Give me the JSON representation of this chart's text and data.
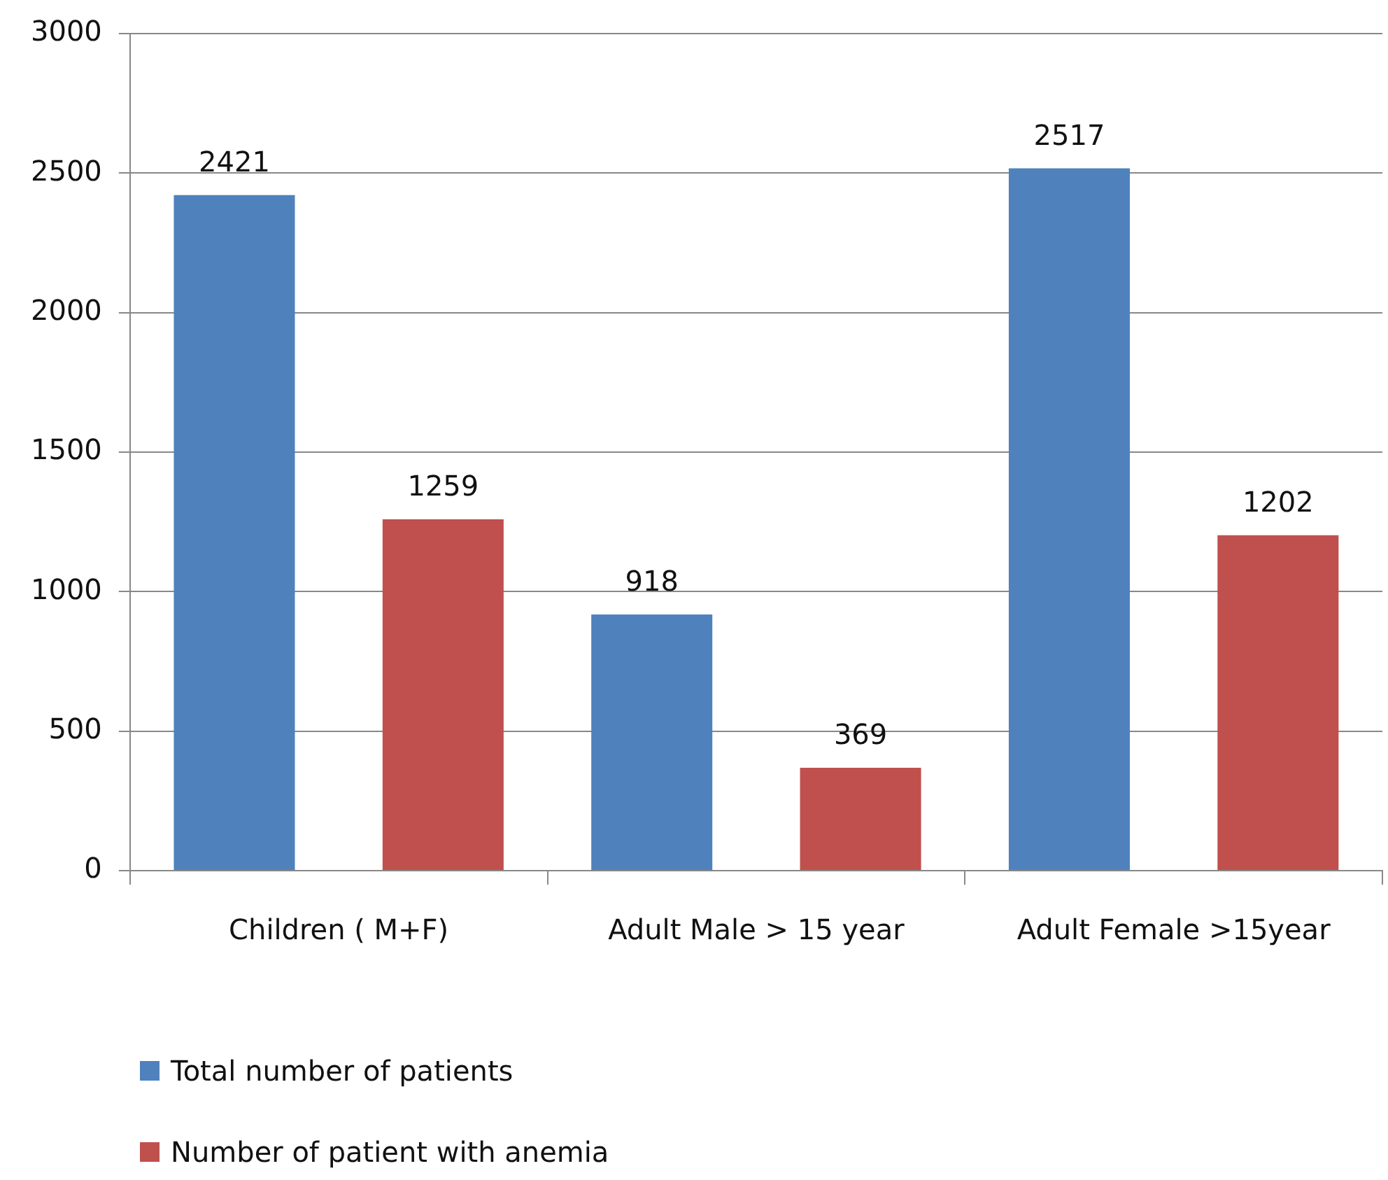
{
  "chart_data": {
    "type": "bar",
    "categories": [
      "Children ( M+F)",
      "Adult Male > 15 year",
      "Adult Female >15year"
    ],
    "series": [
      {
        "name": "Total number of patients",
        "color": "#4f81bd",
        "values": [
          2421,
          918,
          2517
        ]
      },
      {
        "name": "Number of patient with anemia",
        "color": "#c0504d",
        "values": [
          1259,
          369,
          1202
        ]
      }
    ],
    "ylim": [
      0,
      3000
    ],
    "yticks": [
      0,
      500,
      1000,
      1500,
      2000,
      2500,
      3000
    ],
    "grid": "y",
    "legend": "bottom left",
    "data_labels": true
  }
}
